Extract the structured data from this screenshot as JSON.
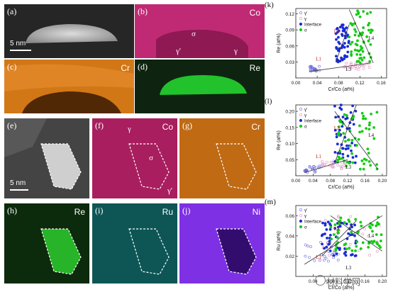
{
  "panels": {
    "a": {
      "tag": "(a)",
      "scale": "5 nm"
    },
    "b": {
      "tag": "(b)",
      "element": "Co",
      "sigma": "σ",
      "gamma_prime": "γ'",
      "gamma": "γ"
    },
    "c": {
      "tag": "(c)",
      "element": "Cr"
    },
    "d": {
      "tag": "(d)",
      "element": "Re"
    },
    "e": {
      "tag": "(e)",
      "scale": "5 nm"
    },
    "f": {
      "tag": "(f)",
      "element": "Co",
      "gamma": "γ",
      "sigma": "σ",
      "gamma_prime": "γ'"
    },
    "g": {
      "tag": "(g)",
      "element": "Cr"
    },
    "h": {
      "tag": "(h)",
      "element": "Re"
    },
    "i": {
      "tag": "(i)",
      "element": "Ru"
    },
    "j": {
      "tag": "(j)",
      "element": "Ni"
    }
  },
  "colors": {
    "co": "#c8287a",
    "cr": "#c86a12",
    "re": "#1fae2a",
    "ru": "#1aa6a6",
    "ni": "#7b2ee0",
    "gamma_prime": "#6b6bd8",
    "gamma": "#e090c0",
    "interface": "#1a2bd6",
    "sigma": "#14cc14",
    "fit": "#333333"
  },
  "chart_data": [
    {
      "tag": "(k)",
      "type": "scatter",
      "xlabel": "Cr/Co (at%)",
      "ylabel": "Re (at%)",
      "xlim": [
        0.0,
        0.17
      ],
      "ylim": [
        0.0,
        0.13
      ],
      "xticks": [
        "0.00",
        "0.04",
        "0.08",
        "0.12",
        "0.16"
      ],
      "yticks": [
        "0.03",
        "0.06",
        "0.09",
        "0.12"
      ],
      "legend": [
        "γ'",
        "γ",
        "Interface",
        "σ"
      ],
      "series": [
        {
          "name": "γ'",
          "x_range": [
            0.025,
            0.045
          ],
          "y_range": [
            0.012,
            0.022
          ]
        },
        {
          "name": "γ",
          "x_range": [
            0.09,
            0.14
          ],
          "y_range": [
            0.016,
            0.028
          ]
        },
        {
          "name": "Interface",
          "x_range": [
            0.075,
            0.1
          ],
          "y_range": [
            0.03,
            0.1
          ]
        },
        {
          "name": "σ",
          "x_range": [
            0.1,
            0.145
          ],
          "y_range": [
            0.028,
            0.128
          ]
        }
      ],
      "lines": [
        "L1",
        "L2",
        "L3",
        "L4"
      ]
    },
    {
      "tag": "(l)",
      "type": "scatter",
      "xlabel": "Cr/Co (at%)",
      "ylabel": "Re (at%)",
      "xlim": [
        0.0,
        0.21
      ],
      "ylim": [
        0.0,
        0.22
      ],
      "xticks": [
        "0.00",
        "0.04",
        "0.08",
        "0.12",
        "0.16",
        "0.20"
      ],
      "yticks": [
        "0.05",
        "0.10",
        "0.15",
        "0.20"
      ],
      "legend": [
        "γ'",
        "γ",
        "Interface",
        "σ"
      ],
      "series": [
        {
          "name": "γ'",
          "x_range": [
            0.02,
            0.06
          ],
          "y_range": [
            0.01,
            0.03
          ]
        },
        {
          "name": "γ",
          "x_range": [
            0.06,
            0.12
          ],
          "y_range": [
            0.02,
            0.05
          ]
        },
        {
          "name": "Interface",
          "x_range": [
            0.09,
            0.14
          ],
          "y_range": [
            0.04,
            0.22
          ]
        },
        {
          "name": "σ",
          "x_range": [
            0.09,
            0.19
          ],
          "y_range": [
            0.02,
            0.2
          ]
        }
      ],
      "lines": [
        "L1",
        "L2",
        "L3",
        "L4"
      ]
    },
    {
      "tag": "(m)",
      "type": "scatter",
      "xlabel": "Cr/Co (at%)",
      "ylabel": "Ru (at%)",
      "xlim": [
        0.0,
        0.21
      ],
      "ylim": [
        0.0,
        0.07
      ],
      "xticks": [
        "0.04",
        "0.08",
        "0.12",
        "0.16",
        "0.20"
      ],
      "yticks": [
        "0.02",
        "0.04",
        "0.06"
      ],
      "legend": [
        "γ'",
        "γ",
        "Interface",
        "σ"
      ],
      "series": [
        {
          "name": "γ'",
          "x_range": [
            0.02,
            0.1
          ],
          "y_range": [
            0.012,
            0.035
          ]
        },
        {
          "name": "γ",
          "x_range": [
            0.06,
            0.2
          ],
          "y_range": [
            0.02,
            0.06
          ]
        },
        {
          "name": "Interface",
          "x_range": [
            0.06,
            0.14
          ],
          "y_range": [
            0.02,
            0.055
          ]
        },
        {
          "name": "σ",
          "x_range": [
            0.08,
            0.2
          ],
          "y_range": [
            0.025,
            0.06
          ]
        }
      ],
      "lines": [
        "L1",
        "L2",
        "L3",
        "L4"
      ]
    }
  ],
  "watermark": "材料学网"
}
